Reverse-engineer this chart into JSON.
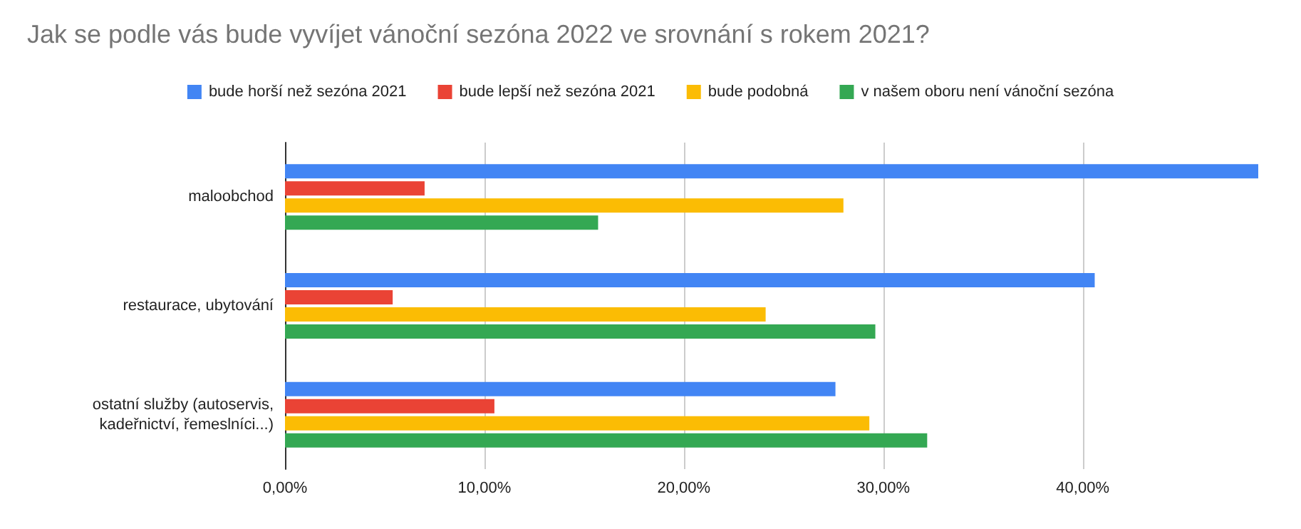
{
  "chart_data": {
    "type": "bar",
    "orientation": "horizontal",
    "title": "Jak se podle vás bude vyvíjet vánoční sezóna 2022 ve srovnání s rokem 2021?",
    "categories": [
      "maloobchod",
      "restaurace, ubytování",
      "ostatní služby (autoservis,\nkadeřnictví, řemeslníci...)"
    ],
    "series": [
      {
        "name": "bude horší než sezóna 2021",
        "color": "#4285f4",
        "values": [
          48.8,
          40.6,
          27.6
        ]
      },
      {
        "name": "bude lepší než sezóna 2021",
        "color": "#ea4335",
        "values": [
          7.0,
          5.4,
          10.5
        ]
      },
      {
        "name": "bude podobná",
        "color": "#fbbc04",
        "values": [
          28.0,
          24.1,
          29.3
        ]
      },
      {
        "name": "v našem oboru není vánoční sezóna",
        "color": "#34a853",
        "values": [
          15.7,
          29.6,
          32.2
        ]
      }
    ],
    "xticks": [
      {
        "value": 0,
        "label": "0,00%"
      },
      {
        "value": 10,
        "label": "10,00%"
      },
      {
        "value": 20,
        "label": "20,00%"
      },
      {
        "value": 30,
        "label": "30,00%"
      },
      {
        "value": 40,
        "label": "40,00%"
      }
    ],
    "xlim": [
      0,
      48.8
    ],
    "grid": "x",
    "legend": "top"
  }
}
